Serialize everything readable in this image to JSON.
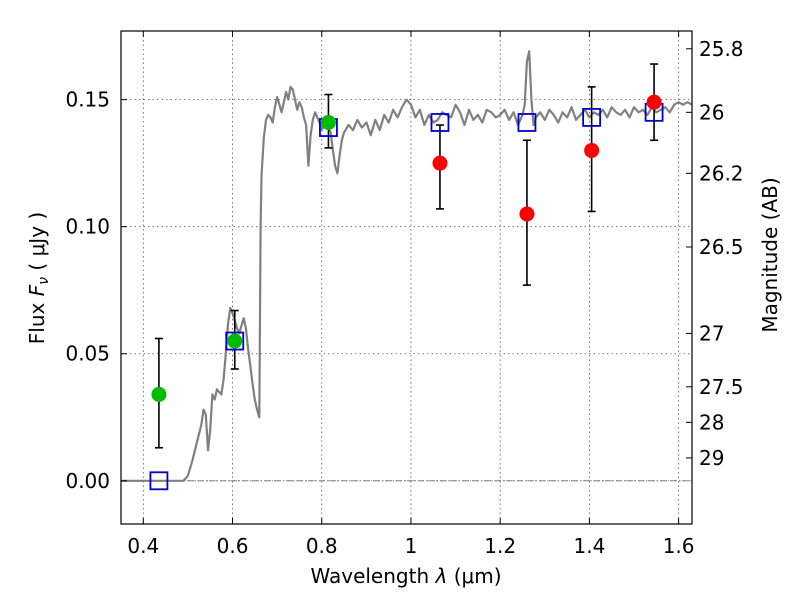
{
  "chart_data": {
    "type": "scatter",
    "xlabel_prefix": "Wavelength",
    "xlabel_symbol": "λ",
    "xlabel_unit": "(μm)",
    "ylabel_prefix": "Flux",
    "ylabel_symbol": "F",
    "ylabel_subscript": "ν",
    "ylabel_unit": "( μJy )",
    "y2label": "Magnitude (AB)",
    "xlim": [
      0.35,
      1.63
    ],
    "ylim": [
      -0.017,
      0.177
    ],
    "grid": true,
    "grid_style": "dotted",
    "x_ticks": [
      {
        "value": 0.4,
        "label": "0.4"
      },
      {
        "value": 0.6,
        "label": "0.6"
      },
      {
        "value": 0.8,
        "label": "0.8"
      },
      {
        "value": 1.0,
        "label": "1"
      },
      {
        "value": 1.2,
        "label": "1.2"
      },
      {
        "value": 1.4,
        "label": "1.4"
      },
      {
        "value": 1.6,
        "label": "1.6"
      }
    ],
    "y_ticks": [
      {
        "value": 0.0,
        "label": "0.00"
      },
      {
        "value": 0.05,
        "label": "0.05"
      },
      {
        "value": 0.1,
        "label": "0.10"
      },
      {
        "value": 0.15,
        "label": "0.15"
      }
    ],
    "y2_ticks": [
      {
        "flux": 0.17,
        "label": "25.8"
      },
      {
        "flux": 0.145,
        "label": "26"
      },
      {
        "flux": 0.121,
        "label": "26.2"
      },
      {
        "flux": 0.092,
        "label": "26.5"
      },
      {
        "flux": 0.058,
        "label": "27"
      },
      {
        "flux": 0.037,
        "label": "27.5"
      },
      {
        "flux": 0.023,
        "label": "28"
      },
      {
        "flux": 0.009,
        "label": "29"
      }
    ],
    "colors": {
      "spectrum": "#808080",
      "green_points": "#00bb00",
      "red_points": "#ff0000",
      "model_squares": "#0000cc",
      "error_bars": "#000000",
      "zero_line": "#808080"
    },
    "spectrum": [
      [
        0.35,
        0.0
      ],
      [
        0.49,
        0.0
      ],
      [
        0.5,
        0.002
      ],
      [
        0.51,
        0.008
      ],
      [
        0.52,
        0.015
      ],
      [
        0.53,
        0.022
      ],
      [
        0.535,
        0.028
      ],
      [
        0.54,
        0.026
      ],
      [
        0.545,
        0.012
      ],
      [
        0.55,
        0.02
      ],
      [
        0.555,
        0.034
      ],
      [
        0.56,
        0.032
      ],
      [
        0.565,
        0.036
      ],
      [
        0.57,
        0.035
      ],
      [
        0.575,
        0.034
      ],
      [
        0.58,
        0.04
      ],
      [
        0.585,
        0.05
      ],
      [
        0.59,
        0.062
      ],
      [
        0.595,
        0.068
      ],
      [
        0.6,
        0.066
      ],
      [
        0.605,
        0.063
      ],
      [
        0.61,
        0.06
      ],
      [
        0.615,
        0.058
      ],
      [
        0.62,
        0.061
      ],
      [
        0.625,
        0.064
      ],
      [
        0.63,
        0.06
      ],
      [
        0.635,
        0.052
      ],
      [
        0.64,
        0.045
      ],
      [
        0.645,
        0.038
      ],
      [
        0.65,
        0.032
      ],
      [
        0.655,
        0.028
      ],
      [
        0.66,
        0.025
      ],
      [
        0.663,
        0.1
      ],
      [
        0.665,
        0.12
      ],
      [
        0.67,
        0.135
      ],
      [
        0.675,
        0.142
      ],
      [
        0.68,
        0.144
      ],
      [
        0.685,
        0.143
      ],
      [
        0.69,
        0.141
      ],
      [
        0.695,
        0.147
      ],
      [
        0.7,
        0.151
      ],
      [
        0.705,
        0.148
      ],
      [
        0.71,
        0.145
      ],
      [
        0.715,
        0.149
      ],
      [
        0.72,
        0.153
      ],
      [
        0.725,
        0.15
      ],
      [
        0.73,
        0.155
      ],
      [
        0.735,
        0.154
      ],
      [
        0.74,
        0.15
      ],
      [
        0.745,
        0.146
      ],
      [
        0.75,
        0.149
      ],
      [
        0.755,
        0.147
      ],
      [
        0.76,
        0.143
      ],
      [
        0.765,
        0.14
      ],
      [
        0.77,
        0.124
      ],
      [
        0.775,
        0.136
      ],
      [
        0.78,
        0.142
      ],
      [
        0.785,
        0.145
      ],
      [
        0.79,
        0.143
      ],
      [
        0.795,
        0.141
      ],
      [
        0.8,
        0.138
      ],
      [
        0.805,
        0.14
      ],
      [
        0.81,
        0.142
      ],
      [
        0.815,
        0.139
      ],
      [
        0.82,
        0.137
      ],
      [
        0.825,
        0.13
      ],
      [
        0.83,
        0.124
      ],
      [
        0.835,
        0.121
      ],
      [
        0.84,
        0.128
      ],
      [
        0.845,
        0.134
      ],
      [
        0.85,
        0.137
      ],
      [
        0.86,
        0.14
      ],
      [
        0.87,
        0.138
      ],
      [
        0.88,
        0.142
      ],
      [
        0.89,
        0.139
      ],
      [
        0.9,
        0.141
      ],
      [
        0.91,
        0.136
      ],
      [
        0.92,
        0.142
      ],
      [
        0.93,
        0.138
      ],
      [
        0.94,
        0.144
      ],
      [
        0.95,
        0.141
      ],
      [
        0.96,
        0.146
      ],
      [
        0.97,
        0.143
      ],
      [
        0.98,
        0.147
      ],
      [
        0.99,
        0.15
      ],
      [
        1.0,
        0.148
      ],
      [
        1.01,
        0.143
      ],
      [
        1.02,
        0.146
      ],
      [
        1.03,
        0.14
      ],
      [
        1.04,
        0.144
      ],
      [
        1.05,
        0.141
      ],
      [
        1.06,
        0.142
      ],
      [
        1.07,
        0.145
      ],
      [
        1.08,
        0.144
      ],
      [
        1.09,
        0.143
      ],
      [
        1.1,
        0.148
      ],
      [
        1.11,
        0.145
      ],
      [
        1.12,
        0.14
      ],
      [
        1.13,
        0.146
      ],
      [
        1.14,
        0.142
      ],
      [
        1.15,
        0.144
      ],
      [
        1.16,
        0.141
      ],
      [
        1.17,
        0.146
      ],
      [
        1.18,
        0.145
      ],
      [
        1.19,
        0.143
      ],
      [
        1.2,
        0.144
      ],
      [
        1.21,
        0.146
      ],
      [
        1.22,
        0.142
      ],
      [
        1.23,
        0.145
      ],
      [
        1.24,
        0.14
      ],
      [
        1.25,
        0.144
      ],
      [
        1.255,
        0.148
      ],
      [
        1.26,
        0.165
      ],
      [
        1.265,
        0.169
      ],
      [
        1.27,
        0.15
      ],
      [
        1.275,
        0.14
      ],
      [
        1.28,
        0.143
      ],
      [
        1.29,
        0.145
      ],
      [
        1.3,
        0.142
      ],
      [
        1.31,
        0.146
      ],
      [
        1.32,
        0.144
      ],
      [
        1.33,
        0.141
      ],
      [
        1.34,
        0.145
      ],
      [
        1.35,
        0.143
      ],
      [
        1.36,
        0.147
      ],
      [
        1.37,
        0.142
      ],
      [
        1.38,
        0.144
      ],
      [
        1.39,
        0.146
      ],
      [
        1.4,
        0.143
      ],
      [
        1.41,
        0.145
      ],
      [
        1.42,
        0.144
      ],
      [
        1.43,
        0.146
      ],
      [
        1.44,
        0.143
      ],
      [
        1.45,
        0.147
      ],
      [
        1.46,
        0.145
      ],
      [
        1.47,
        0.144
      ],
      [
        1.48,
        0.146
      ],
      [
        1.49,
        0.143
      ],
      [
        1.5,
        0.147
      ],
      [
        1.51,
        0.145
      ],
      [
        1.52,
        0.146
      ],
      [
        1.53,
        0.144
      ],
      [
        1.54,
        0.147
      ],
      [
        1.55,
        0.145
      ],
      [
        1.56,
        0.146
      ],
      [
        1.57,
        0.147
      ],
      [
        1.58,
        0.145
      ],
      [
        1.59,
        0.148
      ],
      [
        1.6,
        0.149
      ],
      [
        1.61,
        0.148
      ],
      [
        1.62,
        0.149
      ],
      [
        1.63,
        0.148
      ]
    ],
    "observed_points": [
      {
        "x": 0.435,
        "y": 0.034,
        "err_low": 0.021,
        "err_high": 0.022,
        "color": "green"
      },
      {
        "x": 0.605,
        "y": 0.055,
        "err_low": 0.011,
        "err_high": 0.012,
        "color": "green"
      },
      {
        "x": 0.815,
        "y": 0.141,
        "err_low": 0.01,
        "err_high": 0.011,
        "color": "green"
      },
      {
        "x": 1.065,
        "y": 0.125,
        "err_low": 0.018,
        "err_high": 0.015,
        "color": "red"
      },
      {
        "x": 1.26,
        "y": 0.105,
        "err_low": 0.028,
        "err_high": 0.029,
        "color": "red"
      },
      {
        "x": 1.405,
        "y": 0.13,
        "err_low": 0.024,
        "err_high": 0.025,
        "color": "red"
      },
      {
        "x": 1.545,
        "y": 0.149,
        "err_low": 0.015,
        "err_high": 0.015,
        "color": "red"
      }
    ],
    "model_points": [
      {
        "x": 0.435,
        "y": 0.0
      },
      {
        "x": 0.605,
        "y": 0.055
      },
      {
        "x": 0.815,
        "y": 0.139
      },
      {
        "x": 1.065,
        "y": 0.141
      },
      {
        "x": 1.26,
        "y": 0.141
      },
      {
        "x": 1.405,
        "y": 0.143
      },
      {
        "x": 1.545,
        "y": 0.145
      }
    ]
  }
}
